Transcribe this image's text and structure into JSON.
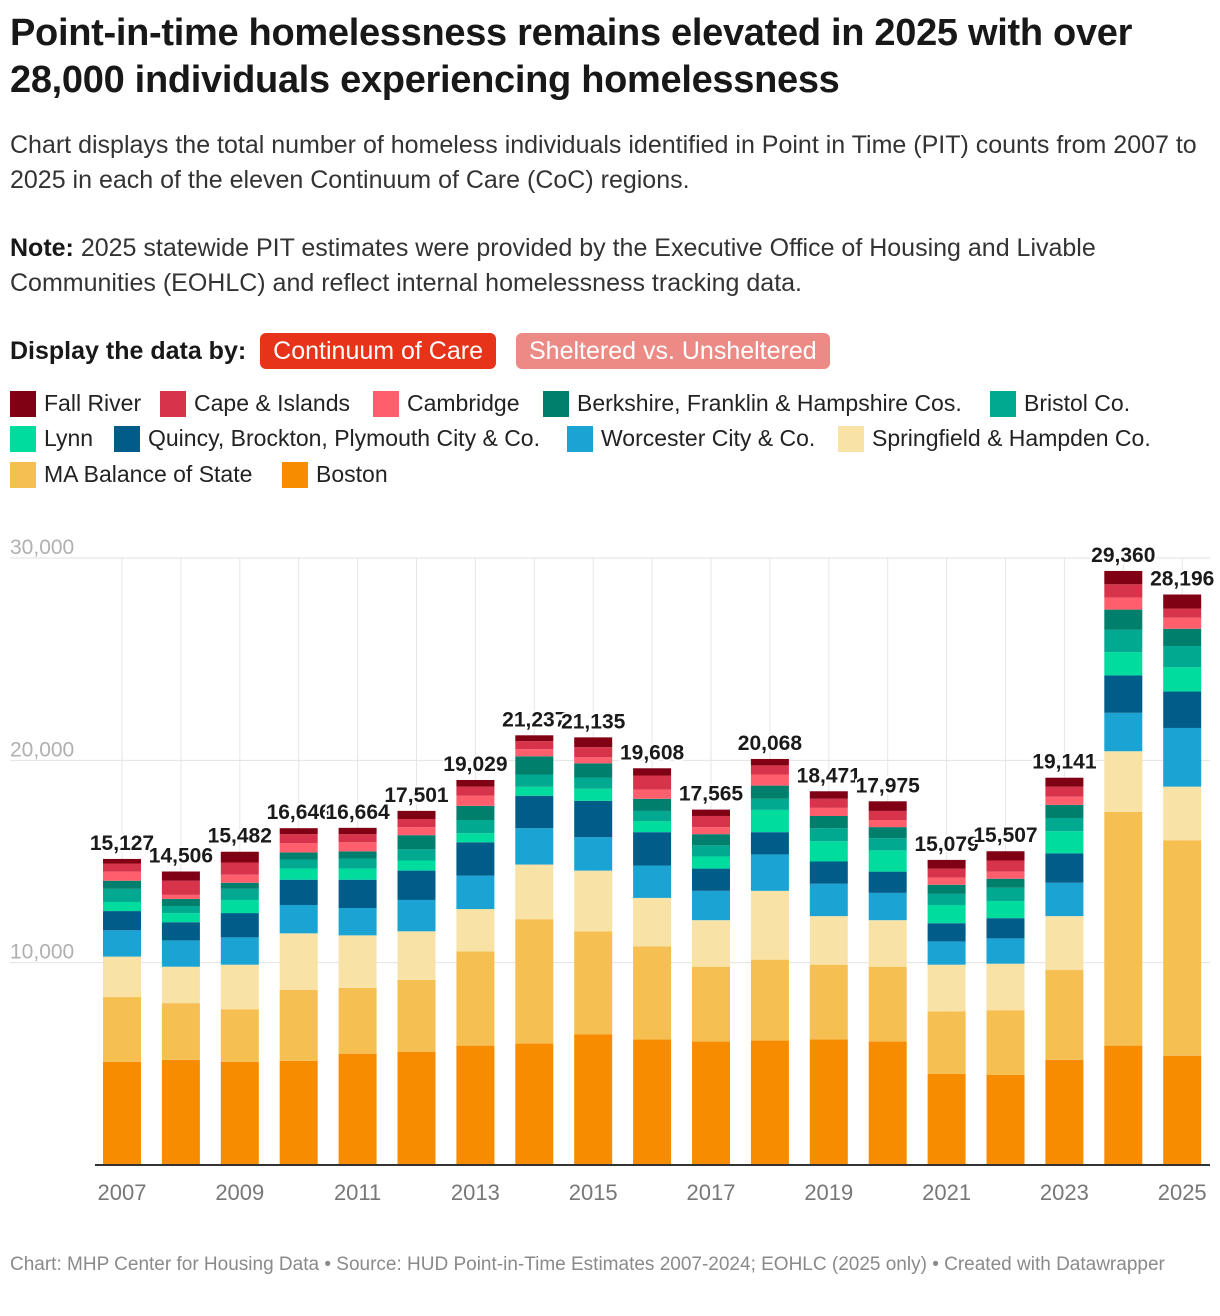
{
  "title": "Point-in-time homelessness remains elevated in 2025 with over 28,000 individuals experiencing homelessness",
  "subtitle": "Chart displays the total number of homeless individuals identified in Point in Time (PIT) counts from 2007 to 2025 in each of the eleven Continuum of Care (CoC) regions.",
  "note": {
    "label": "Note:",
    "text": " 2025 statewide PIT estimates were provided by the Executive Office of Housing and Livable Communities (EOHLC) and reflect internal homelessness tracking data."
  },
  "display": {
    "label": "Display the data by:",
    "options": [
      "Continuum of Care",
      "Sheltered vs. Unsheltered"
    ],
    "active": "Continuum of Care"
  },
  "footer": "Chart: MHP Center for Housing Data • Source: HUD Point-in-Time Estimates 2007-2024; EOHLC (2025 only) • Created with Datawrapper",
  "chart_data": {
    "type": "bar",
    "stacked": true,
    "categories": [
      "2007",
      "2008",
      "2009",
      "2010",
      "2011",
      "2012",
      "2013",
      "2014",
      "2015",
      "2016",
      "2017",
      "2018",
      "2019",
      "2020",
      "2021",
      "2022",
      "2023",
      "2024",
      "2025"
    ],
    "x_tick_labels": [
      "2007",
      "2009",
      "2011",
      "2013",
      "2015",
      "2017",
      "2019",
      "2021",
      "2023",
      "2025"
    ],
    "ylim": [
      0,
      30000
    ],
    "y_ticks": [
      10000,
      20000,
      30000
    ],
    "y_tick_labels": [
      "10,000",
      "20,000",
      "30,000"
    ],
    "grid": true,
    "legend_position": "top",
    "totals": [
      15127,
      14506,
      15482,
      16646,
      16664,
      17501,
      19029,
      21237,
      21135,
      19608,
      17565,
      20068,
      18471,
      17975,
      15079,
      15507,
      19141,
      29360,
      28196
    ],
    "total_labels": [
      "15,127",
      "14,506",
      "15,482",
      "16,646",
      "16,664",
      "17,501",
      "19,029",
      "21,237",
      "21,135",
      "19,608",
      "17,565",
      "20,068",
      "18,471",
      "17,975",
      "15,079",
      "15,507",
      "19,141",
      "29,360",
      "28,196"
    ],
    "series": [
      {
        "name": "Boston",
        "color": "#f78c00",
        "values": [
          5100,
          5200,
          5100,
          5150,
          5500,
          5600,
          5900,
          6000,
          6450,
          6200,
          6100,
          6150,
          6200,
          6100,
          4500,
          4450,
          5200,
          5900,
          5400
        ]
      },
      {
        "name": "MA Balance of State",
        "color": "#f6bf52",
        "values": [
          3200,
          2800,
          2600,
          3500,
          3250,
          3550,
          4650,
          6150,
          5100,
          4600,
          3700,
          4000,
          3700,
          3700,
          3100,
          3200,
          4450,
          11550,
          10650
        ]
      },
      {
        "name": "Springfield & Hampden Co.",
        "color": "#f8e2a6",
        "values": [
          2000,
          1800,
          2200,
          2800,
          2600,
          2400,
          2100,
          2700,
          3000,
          2400,
          2300,
          3400,
          2400,
          2300,
          2300,
          2300,
          2650,
          3000,
          2650
        ]
      },
      {
        "name": "Worcester City & Co.",
        "color": "#1ba3d3",
        "values": [
          1300,
          1300,
          1350,
          1400,
          1350,
          1550,
          1650,
          1800,
          1650,
          1600,
          1450,
          1800,
          1600,
          1350,
          1150,
          1250,
          1650,
          1900,
          2900
        ]
      },
      {
        "name": "Quincy, Brockton, Plymouth City & Co.",
        "color": "#005d8a",
        "values": [
          950,
          900,
          1200,
          1250,
          1400,
          1450,
          1650,
          1600,
          1800,
          1650,
          1100,
          1100,
          1100,
          1050,
          900,
          1000,
          1450,
          1850,
          1800
        ]
      },
      {
        "name": "Lynn",
        "color": "#00dc9e",
        "values": [
          450,
          450,
          650,
          550,
          550,
          500,
          450,
          450,
          600,
          550,
          600,
          1100,
          1000,
          1050,
          900,
          850,
          1100,
          1150,
          1200
        ]
      },
      {
        "name": "Bristol Co.",
        "color": "#00a98f",
        "values": [
          650,
          350,
          550,
          450,
          500,
          550,
          650,
          600,
          550,
          500,
          550,
          550,
          650,
          600,
          550,
          650,
          650,
          1100,
          1050
        ]
      },
      {
        "name": "Berkshire, Franklin & Hampshire Cos.",
        "color": "#007f6d",
        "values": [
          400,
          350,
          300,
          350,
          350,
          700,
          700,
          900,
          700,
          600,
          550,
          650,
          600,
          550,
          450,
          450,
          650,
          1000,
          850
        ]
      },
      {
        "name": "Cambridge",
        "color": "#ff5f6c",
        "values": [
          450,
          200,
          400,
          450,
          450,
          400,
          500,
          350,
          300,
          450,
          350,
          550,
          400,
          350,
          350,
          350,
          400,
          600,
          550
        ]
      },
      {
        "name": "Cape & Islands",
        "color": "#d7344b",
        "values": [
          400,
          700,
          600,
          450,
          400,
          400,
          450,
          400,
          500,
          700,
          550,
          450,
          450,
          450,
          450,
          550,
          500,
          650,
          450
        ]
      },
      {
        "name": "Fall River",
        "color": "#800014",
        "values": [
          227,
          456,
          532,
          296,
          314,
          401,
          329,
          287,
          485,
          358,
          315,
          318,
          371,
          475,
          429,
          457,
          441,
          660,
          696
        ]
      }
    ]
  }
}
